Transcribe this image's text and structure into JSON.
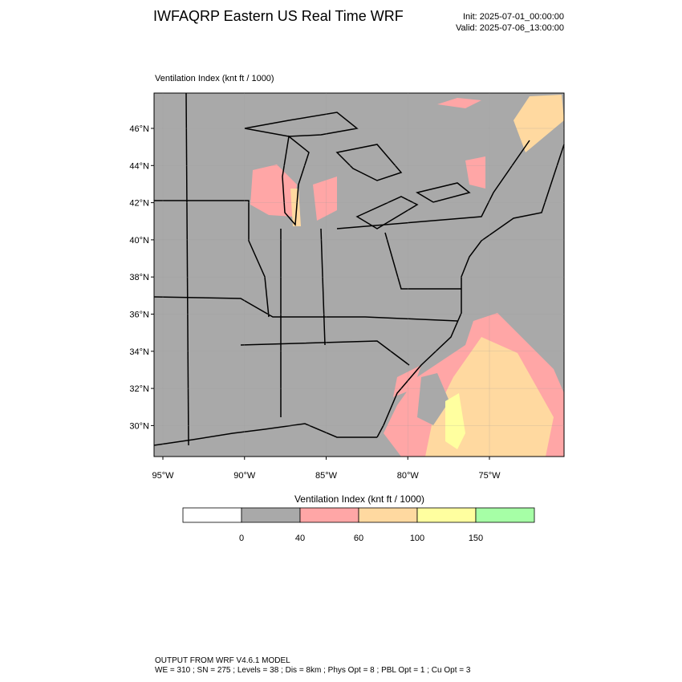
{
  "header": {
    "title": "IWFAQRP Eastern US Real Time WRF",
    "init": "Init: 2025-07-01_00:00:00",
    "valid": "Valid: 2025-07-06_13:00:00"
  },
  "map": {
    "label": "Ventilation Index   (knt ft / 1000)",
    "lat_ticks": [
      {
        "value": 46,
        "label": "46°N"
      },
      {
        "value": 44,
        "label": "44°N"
      },
      {
        "value": 42,
        "label": "42°N"
      },
      {
        "value": 40,
        "label": "40°N"
      },
      {
        "value": 38,
        "label": "38°N"
      },
      {
        "value": 36,
        "label": "36°N"
      },
      {
        "value": 34,
        "label": "34°N"
      },
      {
        "value": 32,
        "label": "32°N"
      },
      {
        "value": 30,
        "label": "30°N"
      }
    ],
    "lon_ticks": [
      {
        "value": -95,
        "label": "95°W"
      },
      {
        "value": -90,
        "label": "90°W"
      },
      {
        "value": -85,
        "label": "85°W"
      },
      {
        "value": -80,
        "label": "80°W"
      },
      {
        "value": -75,
        "label": "75°W"
      }
    ]
  },
  "colorbar": {
    "title": "Ventilation Index  (knt ft / 1000)",
    "colors": [
      "#ffffff",
      "#a9a9a9",
      "#ffa6a6",
      "#ffd9a0",
      "#ffff9f",
      "#a6ffa6"
    ],
    "levels": [
      0,
      40,
      60,
      100,
      150
    ]
  },
  "footer": {
    "line1": "OUTPUT FROM WRF V4.6.1 MODEL",
    "line2": "WE = 310 ; SN = 275 ; Levels = 38 ; Dis = 8km ; Phys Opt = 8 ; PBL Opt = 1 ; Cu Opt = 3"
  }
}
